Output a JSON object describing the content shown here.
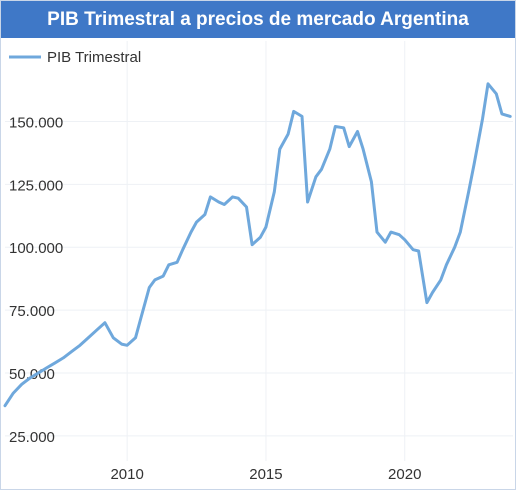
{
  "widget": {
    "title": "PIB Trimestral a precios de mercado Argentina"
  },
  "colors": {
    "title_bar": "#3f78c7",
    "series_line": "#6fa8dc",
    "gridline": "#eef1f5",
    "tick_text": "#333333"
  },
  "chart_data": {
    "type": "line",
    "title": "PIB Trimestral a precios de mercado Argentina",
    "xlabel": "",
    "ylabel": "",
    "x_ticks": [
      2010,
      2015,
      2020
    ],
    "y_ticks": [
      25000,
      50000,
      75000,
      100000,
      125000,
      150000
    ],
    "y_tick_labels": [
      "25.000",
      "50.000",
      "75.000",
      "100.000",
      "125.000",
      "150.000"
    ],
    "xlim": [
      2005.6,
      2023.9
    ],
    "ylim": [
      15000,
      182000
    ],
    "grid": true,
    "legend": "top-left",
    "series": [
      {
        "name": "PIB Trimestral",
        "color": "#6fa8dc",
        "x": [
          2005.6,
          2005.9,
          2006.2,
          2006.5,
          2006.8,
          2007.1,
          2007.4,
          2007.7,
          2008.0,
          2008.3,
          2008.6,
          2008.9,
          2009.2,
          2009.5,
          2009.8,
          2010.0,
          2010.3,
          2010.5,
          2010.8,
          2011.0,
          2011.3,
          2011.5,
          2011.8,
          2012.0,
          2012.3,
          2012.5,
          2012.8,
          2013.0,
          2013.3,
          2013.5,
          2013.8,
          2014.0,
          2014.3,
          2014.5,
          2014.8,
          2015.0,
          2015.3,
          2015.5,
          2015.8,
          2016.0,
          2016.3,
          2016.5,
          2016.8,
          2017.0,
          2017.3,
          2017.5,
          2017.8,
          2018.0,
          2018.3,
          2018.5,
          2018.8,
          2019.0,
          2019.3,
          2019.5,
          2019.8,
          2020.0,
          2020.3,
          2020.5,
          2020.8,
          2021.0,
          2021.3,
          2021.5,
          2021.8,
          2022.0,
          2022.3,
          2022.5,
          2022.8,
          2023.0,
          2023.3,
          2023.5,
          2023.8
        ],
        "y": [
          37000,
          42000,
          45500,
          48000,
          50000,
          52000,
          54000,
          56000,
          58500,
          61000,
          64000,
          67000,
          70000,
          64000,
          61500,
          61000,
          64000,
          72000,
          84000,
          87000,
          88500,
          93000,
          94000,
          99000,
          106000,
          110000,
          113000,
          120000,
          118000,
          117000,
          120000,
          119500,
          116000,
          101000,
          104000,
          108000,
          122000,
          139000,
          145000,
          154000,
          152000,
          118000,
          128000,
          131000,
          139000,
          148000,
          147500,
          140000,
          146000,
          139000,
          126000,
          106000,
          102000,
          106000,
          105000,
          103000,
          99000,
          98500,
          78000,
          82000,
          87000,
          93000,
          100000,
          106000,
          122000,
          133000,
          151000,
          165000,
          161000,
          153000,
          152000
        ]
      }
    ]
  }
}
